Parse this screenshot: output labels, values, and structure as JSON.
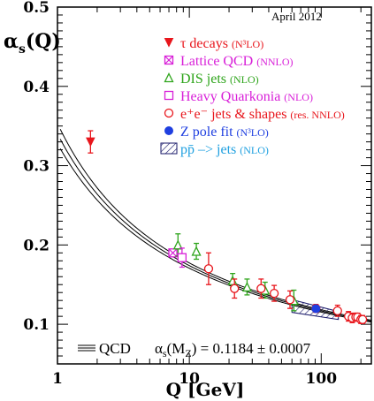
{
  "chart_data": {
    "type": "scatter",
    "date_label": "April 2012",
    "ylabel_main": "α",
    "ylabel_sub": "s",
    "ylabel_tail": "(Q)",
    "xlabel": "Q [GeV]",
    "x_scale": "log",
    "xlim": [
      1,
      240
    ],
    "ylim": [
      0.05,
      0.5
    ],
    "x_ticks": [
      {
        "value": 1,
        "label": "1"
      },
      {
        "value": 10,
        "label": "10"
      },
      {
        "value": 100,
        "label": "100"
      }
    ],
    "y_ticks": [
      {
        "value": 0.1,
        "label": "0.1"
      },
      {
        "value": 0.2,
        "label": "0.2"
      },
      {
        "value": 0.3,
        "label": "0.3"
      },
      {
        "value": 0.4,
        "label": "0.4"
      },
      {
        "value": 0.5,
        "label": "0.5"
      }
    ],
    "legend": [
      {
        "key": "tau",
        "label": "τ decays",
        "order": "(N³LO)",
        "color": "#e8161c",
        "marker": "triangle-down-filled"
      },
      {
        "key": "lattice",
        "label": "Lattice QCD",
        "order": "(NNLO)",
        "color": "#d81fd8",
        "marker": "square-cross"
      },
      {
        "key": "dis",
        "label": "DIS jets",
        "order": "(NLO)",
        "color": "#2fa51c",
        "marker": "triangle-open"
      },
      {
        "key": "quarkonia",
        "label": "Heavy Quarkonia",
        "order": "(NLO)",
        "color": "#d81fd8",
        "marker": "square-open"
      },
      {
        "key": "ee",
        "label": "e⁺e⁻ jets & shapes",
        "order": "(res. NNLO)",
        "color": "#e8161c",
        "marker": "circle-open"
      },
      {
        "key": "zpole",
        "label": "Z pole fit",
        "order": "(N³LO)",
        "color": "#1f3fe0",
        "marker": "circle-filled"
      },
      {
        "key": "ppbar",
        "label": "pp̄ –> jets",
        "order": "(NLO)",
        "color": "#1fa0e0",
        "marker": "hatched-box"
      }
    ],
    "series": [
      {
        "name": "τ decays",
        "key": "tau",
        "points": [
          {
            "x": 1.78,
            "y": 0.33,
            "err": 0.014
          }
        ]
      },
      {
        "name": "Lattice QCD",
        "key": "lattice",
        "points": [
          {
            "x": 7.5,
            "y": 0.19,
            "err": 0.004
          }
        ]
      },
      {
        "name": "DIS jets",
        "key": "dis",
        "points": [
          {
            "x": 8.2,
            "y": 0.2,
            "err": 0.014
          },
          {
            "x": 11.3,
            "y": 0.192,
            "err": 0.01
          },
          {
            "x": 21.3,
            "y": 0.155,
            "err": 0.009
          },
          {
            "x": 27.4,
            "y": 0.147,
            "err": 0.01
          },
          {
            "x": 37.5,
            "y": 0.143,
            "err": 0.01
          },
          {
            "x": 62.0,
            "y": 0.13,
            "err": 0.013
          }
        ]
      },
      {
        "name": "Heavy Quarkonia",
        "key": "quarkonia",
        "points": [
          {
            "x": 8.8,
            "y": 0.184,
            "err": 0.012
          }
        ]
      },
      {
        "name": "e⁺e⁻ jets & shapes",
        "key": "ee",
        "points": [
          {
            "x": 14.0,
            "y": 0.17,
            "err": 0.02
          },
          {
            "x": 22.0,
            "y": 0.145,
            "err": 0.012
          },
          {
            "x": 35.0,
            "y": 0.145,
            "err": 0.012
          },
          {
            "x": 44.0,
            "y": 0.139,
            "err": 0.01
          },
          {
            "x": 58.0,
            "y": 0.131,
            "err": 0.011
          },
          {
            "x": 91.2,
            "y": 0.12,
            "err": 0.005
          },
          {
            "x": 133.0,
            "y": 0.117,
            "err": 0.007
          },
          {
            "x": 161.0,
            "y": 0.11,
            "err": 0.006
          },
          {
            "x": 172.0,
            "y": 0.108,
            "err": 0.006
          },
          {
            "x": 183.0,
            "y": 0.109,
            "err": 0.005
          },
          {
            "x": 189.0,
            "y": 0.109,
            "err": 0.005
          },
          {
            "x": 200.0,
            "y": 0.106,
            "err": 0.005
          },
          {
            "x": 206.0,
            "y": 0.106,
            "err": 0.005
          }
        ]
      },
      {
        "name": "Z pole fit",
        "key": "zpole",
        "points": [
          {
            "x": 91.2,
            "y": 0.1196,
            "err": 0.003
          }
        ]
      }
    ],
    "band": {
      "key": "ppbar",
      "x_range": [
        60,
        135
      ],
      "y_upper": [
        0.131,
        0.116
      ],
      "y_lower": [
        0.115,
        0.106
      ]
    },
    "qcd_curve": {
      "alpha_mz": 0.1184,
      "mz": 91.19,
      "band": 0.0007,
      "x_range": [
        1.05,
        240
      ]
    },
    "annotation": {
      "qcd_label": "QCD",
      "alpha_label": "α",
      "alpha_sub": "s",
      "alpha_arg": "(M",
      "alpha_arg_sub": "Z",
      "alpha_value": ") = 0.1184 ± 0.0007"
    }
  }
}
